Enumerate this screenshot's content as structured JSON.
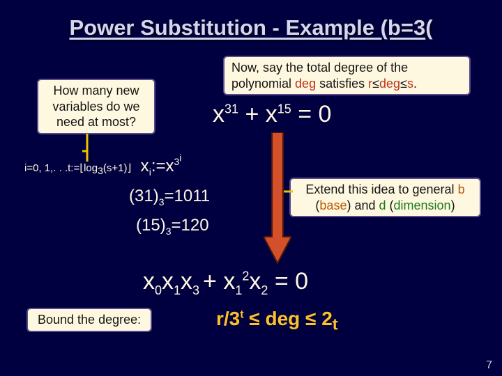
{
  "title_html": "<span class='under'>Power Substitution - Example (b=3</span>(",
  "callouts": {
    "howmany": "How many new variables do we need at most?",
    "degree_html": "Now, say the total degree of the polynomial <span class='deg'>deg</span> satisfies <span class='r'>r</span>&le;<span class='deg'>deg</span>&le;<span class='s'>s</span>.",
    "extend_html": "Extend this idea to general <span class='base'>b</span> (<span class='base'>base</span>) and <span class='dim'>d</span> (<span class='dim'>dimension</span>)"
  },
  "eq1_html": "x<sup>31</sup> + x<sup>15</sup> = 0",
  "subst_html": "<span class='small'>i=0, 1,. . .t:=&lfloor;log<sub>3</sub>(s+1)&rfloor;</span>&nbsp; x<sub>i</sub>:=x<sup>3<sup>i</sup></sup>",
  "base31_html": "(31)<sub>3</sub>=1011",
  "base15_html": "(15)<sub>3</sub>=120",
  "eq2_html": "x<sub>0</sub>x<sub>1</sub>x<sub>3 </sub>+ x<sub>1</sub><sup>2</sup>x<sub>2</sub> = 0",
  "bound_label": "Bound the degree:",
  "bound_html": "r/3<sup>t</sup> &le; deg &le; 2<sub>t</sub>",
  "page": "7",
  "colors": {
    "bg": "#000040",
    "text": "#fff8e0",
    "title": "#d5d5eb",
    "callout_bg": "#fff8e0",
    "callout_border": "#5a4a8a",
    "accent_yellow": "#ffc030",
    "deg": "#c03018",
    "base": "#b85a00",
    "dim": "#1a7a1a",
    "arrow_fill": "#d4502a",
    "arrow_stroke": "#501808",
    "leader": "#f0c000"
  }
}
